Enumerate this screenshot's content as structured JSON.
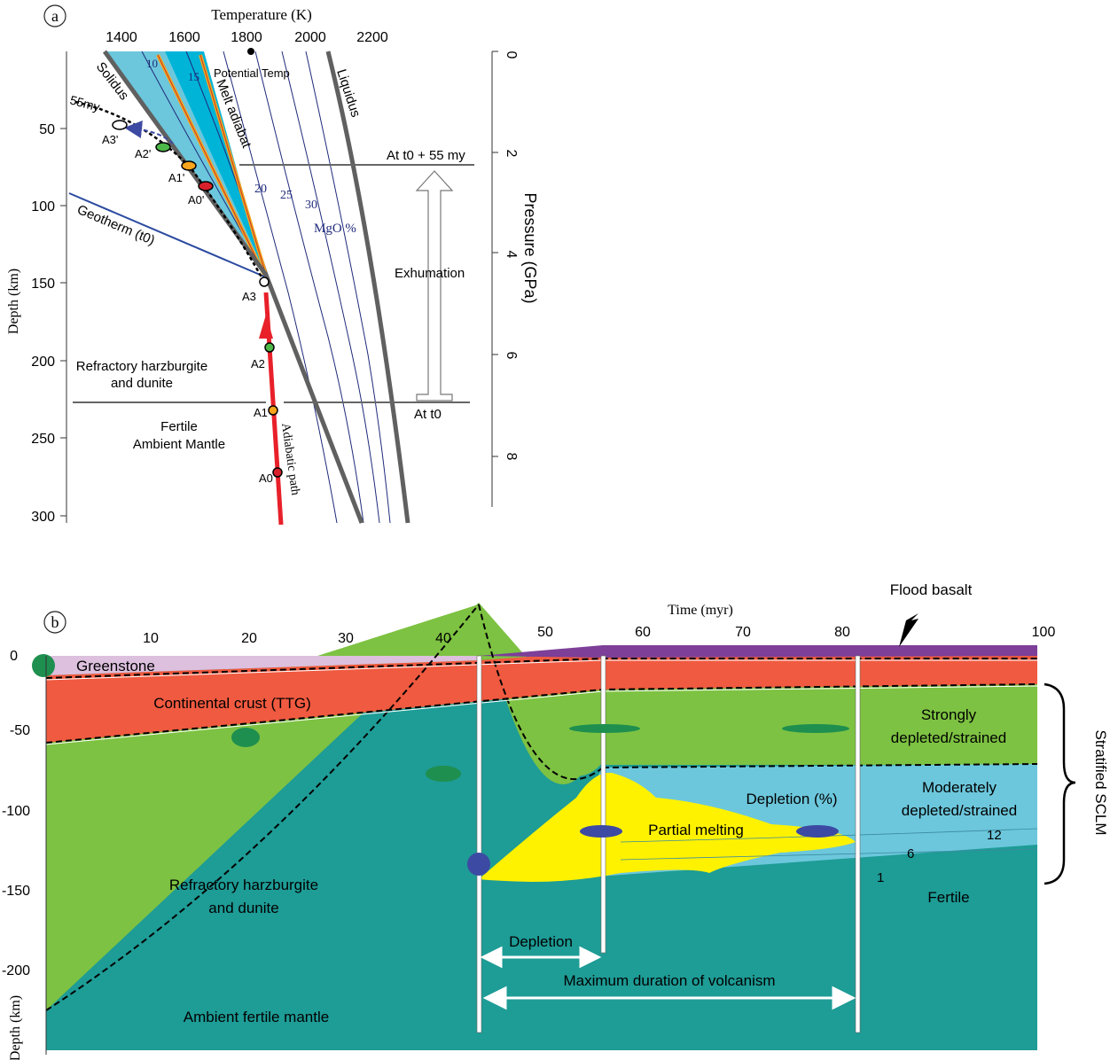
{
  "panel_a": {
    "label": "a",
    "top_axis": {
      "title": "Temperature (K)",
      "ticks": [
        "1400",
        "1600",
        "1800",
        "2000",
        "2200"
      ]
    },
    "left_axis": {
      "title": "Depth (km)",
      "ticks": [
        "50",
        "100",
        "150",
        "200",
        "250",
        "300"
      ]
    },
    "right_axis": {
      "title": "Pressure (GPa)",
      "ticks": [
        "0",
        "2",
        "4",
        "6",
        "8"
      ]
    },
    "labels": {
      "solidus": "Solidus",
      "liquidus": "Liquidus",
      "melt_adiabat": "Melt adiabat",
      "potential_temp": "Potential Temp",
      "geotherm": "Geotherm (t0)",
      "age": "55my",
      "mgo": "MgO %",
      "at_t0_55": "At t0 + 55 my",
      "at_t0": "At t0",
      "exhumation": "Exhumation",
      "adiabatic_path": "Adiabatic path",
      "refractory": [
        "Refractory harzburgite",
        "and dunite"
      ],
      "fertile": [
        "Fertile",
        "Ambient Mantle"
      ]
    },
    "mgo_contours": [
      "10",
      "15",
      "20",
      "25",
      "30"
    ],
    "points": {
      "A0": "A0",
      "A1": "A1",
      "A2": "A2",
      "A3": "A3",
      "A0p": "A0'",
      "A1p": "A1'",
      "A2p": "A2'",
      "A3p": "A3'"
    }
  },
  "panel_b": {
    "label": "b",
    "top_axis": {
      "title": "Time (myr)",
      "ticks": [
        "10",
        "20",
        "30",
        "40",
        "50",
        "60",
        "70",
        "80",
        "100"
      ]
    },
    "left_axis": {
      "title": "Depth (km)",
      "ticks": [
        "0",
        "-50",
        "-100",
        "-150",
        "-200"
      ]
    },
    "layers": {
      "greenstone": "Greenstone",
      "crust": "Continental crust (TTG)",
      "refractory": [
        "Refractory harzburgite",
        "and dunite"
      ],
      "ambient": "Ambient fertile mantle",
      "strongly": [
        "Strongly",
        "depleted/strained"
      ],
      "moderately": [
        "Moderately",
        "depleted/strained"
      ],
      "fertile": "Fertile",
      "partial_melting": "Partial melting",
      "depletion_pct": "Depletion (%)",
      "flood_basalt": "Flood basalt",
      "depletion": "Depletion",
      "max_duration": "Maximum duration of volcanism",
      "sclm": "Stratified SCLM"
    },
    "depletion_contours": [
      "12",
      "6",
      "1"
    ]
  },
  "colors": {
    "green": "#7dc242",
    "teal": "#1e9c96",
    "crust_red": "#f05a40",
    "greenstone_pink": "#dcc0de",
    "basalt_purple": "#7d3f98",
    "light_blue": "#6cc7dc",
    "yellow": "#fff200",
    "dark_blue": "#3d4aa3",
    "dark_green": "#1e8f4f",
    "melt_cyan": "#00b4d8",
    "red_arrow": "#e8202a"
  }
}
